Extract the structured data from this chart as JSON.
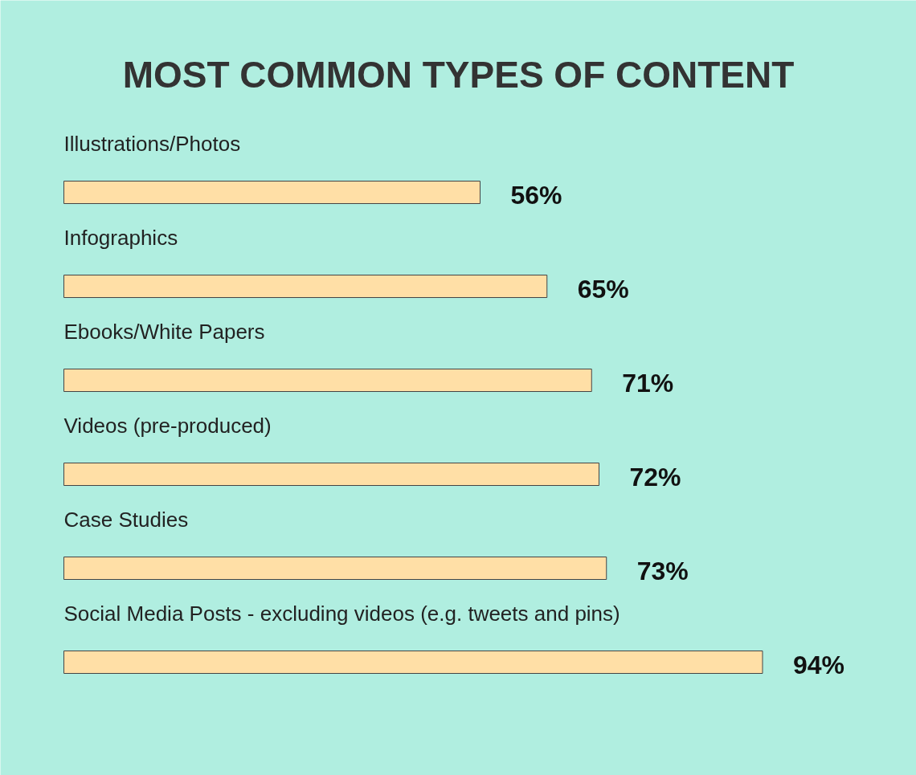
{
  "chart_data": {
    "type": "bar",
    "orientation": "horizontal",
    "title": "MOST COMMON TYPES OF CONTENT",
    "categories": [
      "Illustrations/Photos",
      "Infographics",
      "Ebooks/White Papers",
      "Videos (pre-produced)",
      "Case Studies",
      "Social Media Posts - excluding videos (e.g. tweets and pins)"
    ],
    "values": [
      56,
      65,
      71,
      72,
      73,
      94
    ],
    "value_labels": [
      "56%",
      "65%",
      "71%",
      "72%",
      "73%",
      "94%"
    ],
    "color": "#ffdfa6",
    "grid": false
  }
}
